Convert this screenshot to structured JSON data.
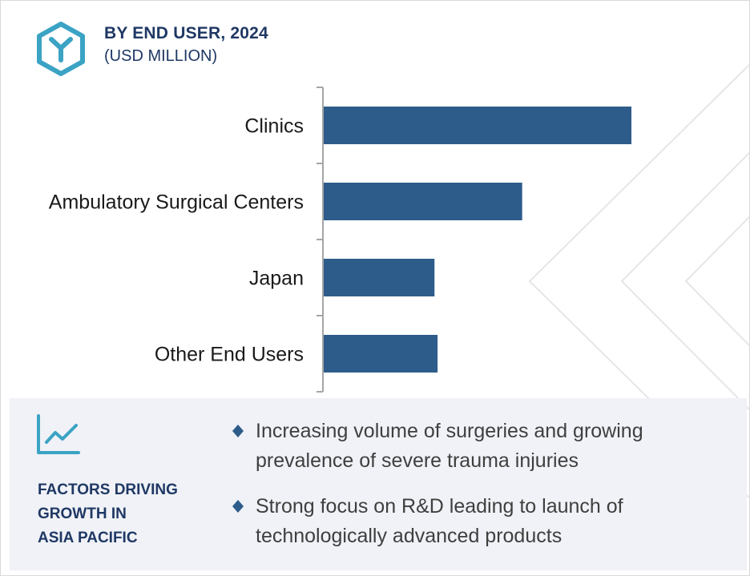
{
  "header": {
    "title": "BY END USER, 2024",
    "subtitle": "(USD MILLION)",
    "logo_icon": "hexagon-y-logo-icon"
  },
  "chart_data": {
    "type": "bar",
    "orientation": "horizontal",
    "categories": [
      "Clinics",
      "Ambulatory Surgical Centers",
      "Japan",
      "Other End Users"
    ],
    "values": [
      100,
      64.5,
      36,
      37
    ],
    "bar_color": "#2d5c8a",
    "axis_color": "#a6a6a6",
    "xlim": [
      0,
      100
    ],
    "grid": false,
    "legend": "none",
    "value_axis_labels": false
  },
  "factors": {
    "icon": "trend-chart-icon",
    "title_lines": [
      "FACTORS DRIVING",
      "GROWTH IN",
      "ASIA PACIFIC"
    ],
    "bullets": [
      "Increasing volume of surgeries and growing prevalence of severe trauma injuries",
      "Strong focus on R&D leading to launch of technologically advanced products"
    ],
    "bullet_icon": "diamond-bullet-icon"
  },
  "colors": {
    "title": "#1f3864",
    "accent": "#3ba3c4",
    "panel_bg": "#f0f2f7",
    "bullet": "#2d5c8a",
    "text": "#3f3f3f"
  }
}
